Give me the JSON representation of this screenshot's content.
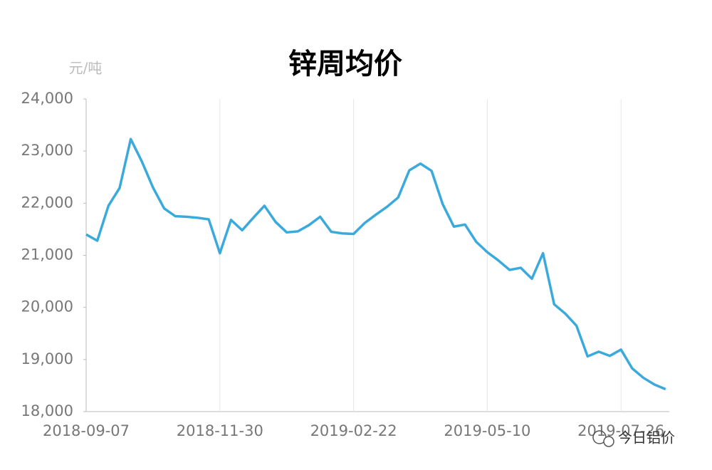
{
  "chart_data": {
    "type": "line",
    "title": "锌周均价",
    "y_unit": "元/吨",
    "categories": [
      "2018-09-07",
      null,
      null,
      null,
      null,
      null,
      null,
      null,
      null,
      null,
      null,
      null,
      "2018-11-30",
      null,
      null,
      null,
      null,
      null,
      null,
      null,
      null,
      null,
      null,
      null,
      "2019-02-22",
      null,
      null,
      null,
      null,
      null,
      null,
      null,
      null,
      null,
      null,
      null,
      "2019-05-10",
      null,
      null,
      null,
      null,
      null,
      null,
      null,
      null,
      null,
      null,
      null,
      "2019-07-26",
      null,
      null,
      null,
      null
    ],
    "series": [
      {
        "name": "锌周均价",
        "color": "#3aa9dc",
        "values": [
          21400,
          21280,
          21950,
          22290,
          23230,
          22800,
          22300,
          21900,
          21750,
          21740,
          21720,
          21690,
          21040,
          21680,
          21480,
          21720,
          21950,
          21640,
          21440,
          21460,
          21580,
          21740,
          21450,
          21420,
          21410,
          21620,
          21780,
          21930,
          22110,
          22630,
          22760,
          22620,
          21980,
          21550,
          21590,
          21260,
          21060,
          20900,
          20720,
          20760,
          20550,
          21040,
          20060,
          19880,
          19650,
          19060,
          19150,
          19070,
          19190,
          18830,
          18650,
          18520,
          18430
        ]
      }
    ],
    "ylim": [
      18000,
      24000
    ],
    "yticks": [
      {
        "value": 18000,
        "label": "18,000"
      },
      {
        "value": 19000,
        "label": "19,000"
      },
      {
        "value": 20000,
        "label": "20,000"
      },
      {
        "value": 21000,
        "label": "21,000"
      },
      {
        "value": 22000,
        "label": "22,000"
      },
      {
        "value": 23000,
        "label": "23,000"
      },
      {
        "value": 24000,
        "label": "24,000"
      }
    ],
    "watermark": "今日铝价"
  }
}
